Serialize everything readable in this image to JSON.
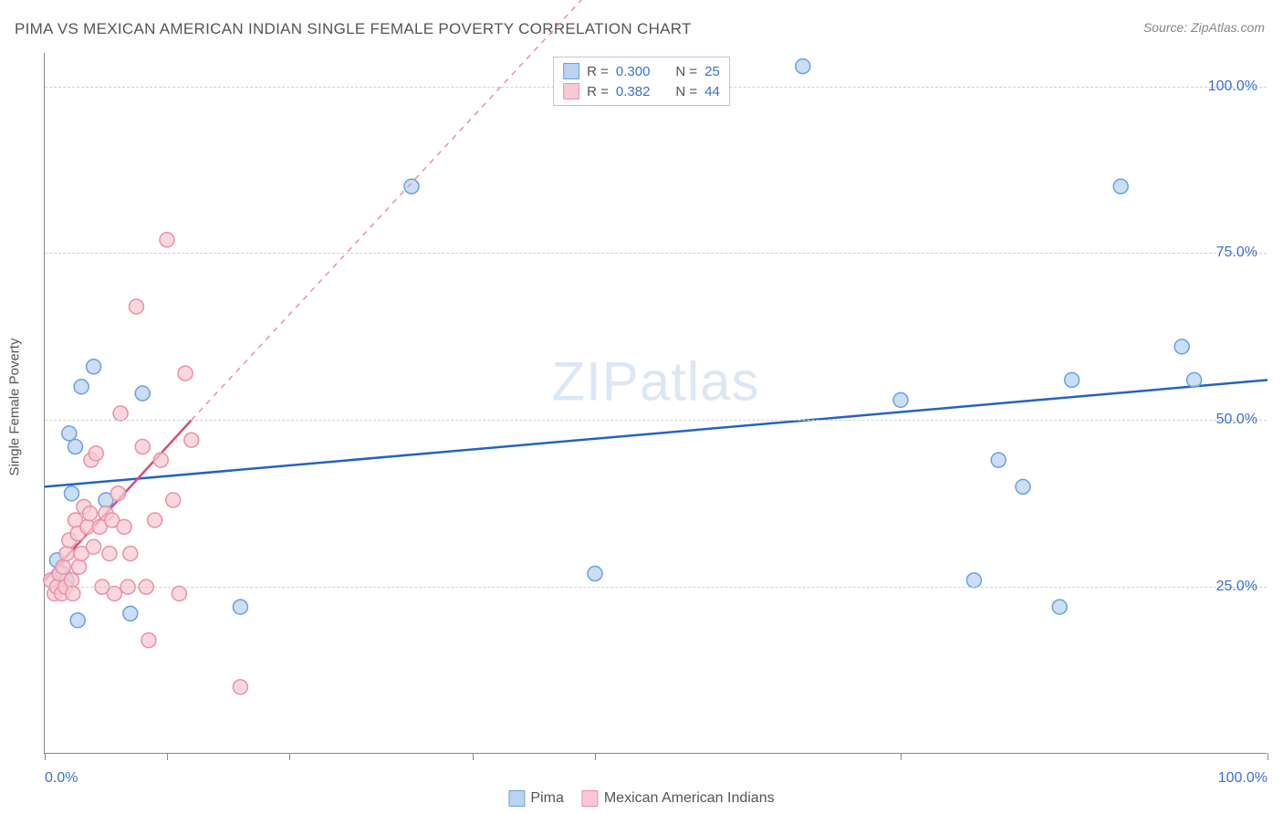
{
  "title": "PIMA VS MEXICAN AMERICAN INDIAN SINGLE FEMALE POVERTY CORRELATION CHART",
  "source": "Source: ZipAtlas.com",
  "y_axis_label": "Single Female Poverty",
  "watermark": {
    "zip": "ZIP",
    "atlas": "atlas"
  },
  "chart": {
    "type": "scatter",
    "xlim": [
      0,
      100
    ],
    "ylim": [
      0,
      105
    ],
    "y_ticks": [
      25.0,
      50.0,
      75.0,
      100.0
    ],
    "y_tick_labels": [
      "25.0%",
      "50.0%",
      "75.0%",
      "100.0%"
    ],
    "x_ticks": [
      0,
      10,
      20,
      35,
      45,
      70,
      100
    ],
    "x_tick_labels": {
      "0": "0.0%",
      "100": "100.0%"
    },
    "background_color": "#ffffff",
    "grid_color": "#d0d0d0",
    "axis_color": "#888888",
    "marker_radius": 8,
    "marker_stroke_width": 1.5,
    "line_width": 2.5,
    "series": [
      {
        "name": "Pima",
        "color_fill": "#b9d3f0",
        "color_stroke": "#6aa0e0",
        "line_color": "#2463c4",
        "r_value": "0.300",
        "n_value": "25",
        "trend": {
          "x1": 0,
          "y1": 40,
          "x2": 100,
          "y2": 56,
          "dash_start_x": 12
        },
        "points": [
          {
            "x": 1,
            "y": 29
          },
          {
            "x": 1.5,
            "y": 27
          },
          {
            "x": 1.8,
            "y": 26
          },
          {
            "x": 2,
            "y": 48
          },
          {
            "x": 2.2,
            "y": 39
          },
          {
            "x": 2.5,
            "y": 46
          },
          {
            "x": 2.7,
            "y": 20
          },
          {
            "x": 3,
            "y": 55
          },
          {
            "x": 4,
            "y": 58
          },
          {
            "x": 5,
            "y": 38
          },
          {
            "x": 7,
            "y": 21
          },
          {
            "x": 8,
            "y": 54
          },
          {
            "x": 16,
            "y": 22
          },
          {
            "x": 30,
            "y": 85
          },
          {
            "x": 45,
            "y": 27
          },
          {
            "x": 62,
            "y": 103
          },
          {
            "x": 70,
            "y": 53
          },
          {
            "x": 76,
            "y": 26
          },
          {
            "x": 78,
            "y": 44
          },
          {
            "x": 80,
            "y": 40
          },
          {
            "x": 83,
            "y": 22
          },
          {
            "x": 84,
            "y": 56
          },
          {
            "x": 88,
            "y": 85
          },
          {
            "x": 93,
            "y": 61
          },
          {
            "x": 94,
            "y": 56
          }
        ]
      },
      {
        "name": "Mexican American Indians",
        "color_fill": "#f7c9d4",
        "color_stroke": "#e891a8",
        "line_color": "#d84a78",
        "r_value": "0.382",
        "n_value": "44",
        "trend": {
          "x1": 0,
          "y1": 26,
          "x2": 12,
          "y2": 50,
          "dash_to_x": 50,
          "dash_to_y": 125
        },
        "points": [
          {
            "x": 0.5,
            "y": 26
          },
          {
            "x": 0.8,
            "y": 24
          },
          {
            "x": 1,
            "y": 25
          },
          {
            "x": 1.2,
            "y": 27
          },
          {
            "x": 1.4,
            "y": 24
          },
          {
            "x": 1.5,
            "y": 28
          },
          {
            "x": 1.7,
            "y": 25
          },
          {
            "x": 1.8,
            "y": 30
          },
          {
            "x": 2,
            "y": 32
          },
          {
            "x": 2.2,
            "y": 26
          },
          {
            "x": 2.3,
            "y": 24
          },
          {
            "x": 2.5,
            "y": 35
          },
          {
            "x": 2.7,
            "y": 33
          },
          {
            "x": 2.8,
            "y": 28
          },
          {
            "x": 3,
            "y": 30
          },
          {
            "x": 3.2,
            "y": 37
          },
          {
            "x": 3.5,
            "y": 34
          },
          {
            "x": 3.7,
            "y": 36
          },
          {
            "x": 3.8,
            "y": 44
          },
          {
            "x": 4,
            "y": 31
          },
          {
            "x": 4.2,
            "y": 45
          },
          {
            "x": 4.5,
            "y": 34
          },
          {
            "x": 4.7,
            "y": 25
          },
          {
            "x": 5,
            "y": 36
          },
          {
            "x": 5.3,
            "y": 30
          },
          {
            "x": 5.5,
            "y": 35
          },
          {
            "x": 5.7,
            "y": 24
          },
          {
            "x": 6,
            "y": 39
          },
          {
            "x": 6.2,
            "y": 51
          },
          {
            "x": 6.5,
            "y": 34
          },
          {
            "x": 6.8,
            "y": 25
          },
          {
            "x": 7,
            "y": 30
          },
          {
            "x": 7.5,
            "y": 67
          },
          {
            "x": 8,
            "y": 46
          },
          {
            "x": 8.3,
            "y": 25
          },
          {
            "x": 8.5,
            "y": 17
          },
          {
            "x": 9,
            "y": 35
          },
          {
            "x": 9.5,
            "y": 44
          },
          {
            "x": 10,
            "y": 77
          },
          {
            "x": 10.5,
            "y": 38
          },
          {
            "x": 11,
            "y": 24
          },
          {
            "x": 11.5,
            "y": 57
          },
          {
            "x": 12,
            "y": 47
          },
          {
            "x": 16,
            "y": 10
          }
        ]
      }
    ]
  },
  "legend_bottom": [
    {
      "label": "Pima",
      "fill": "#b9d3f0",
      "stroke": "#6aa0e0"
    },
    {
      "label": "Mexican American Indians",
      "fill": "#f7c9d4",
      "stroke": "#e891a8"
    }
  ],
  "legend_top_labels": {
    "r": "R =",
    "n": "N ="
  },
  "text_colors": {
    "title": "#555555",
    "axis_label": "#555555",
    "tick": "#3b6fd4",
    "stat_value": "#3b6fd4"
  },
  "font": {
    "title_size": 17,
    "tick_size": 16,
    "axis_label_size": 15,
    "legend_size": 16,
    "watermark_size": 60
  }
}
